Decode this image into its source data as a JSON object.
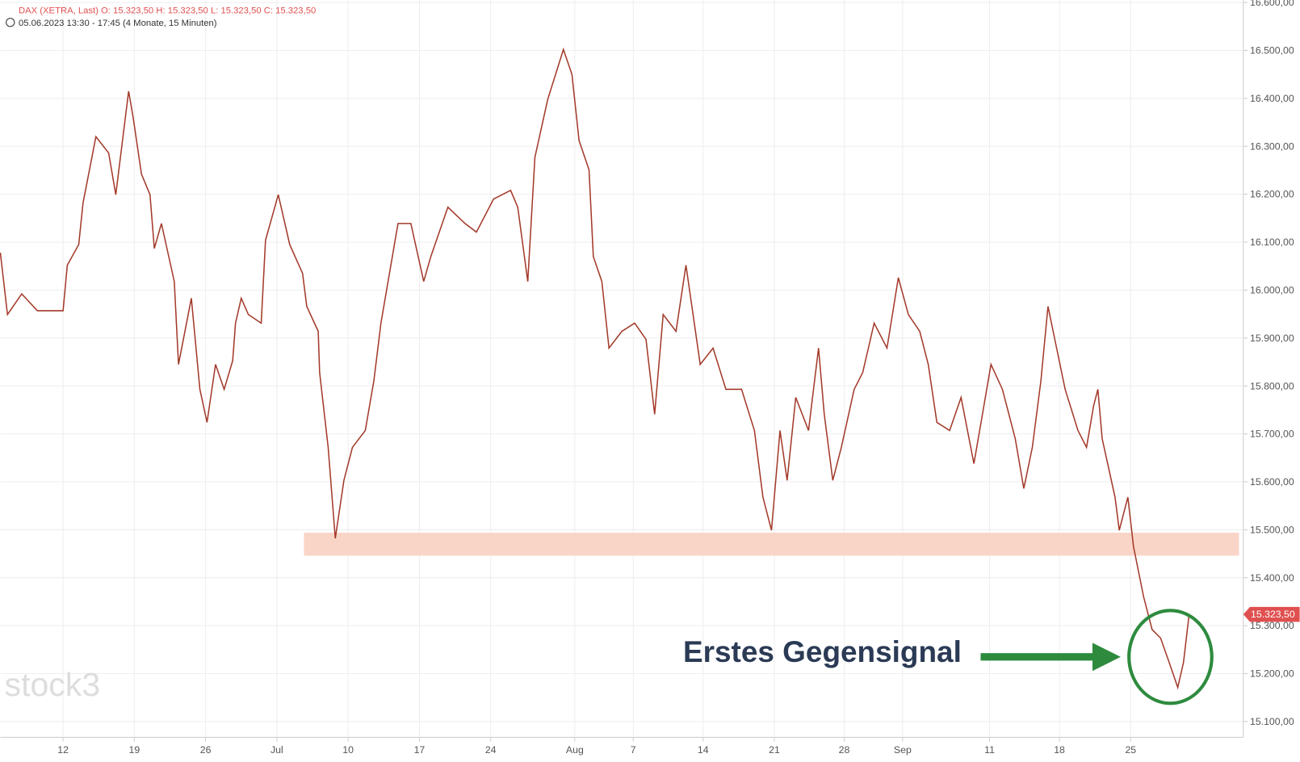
{
  "chart_data": {
    "type": "line",
    "header": "DAX (XETRA, Last)  O: 15.323,50  H: 15.323,50  L: 15.323,50  C: 15.323,50",
    "subheader": "05.06.2023 13:30 - 17:45   (4 Monate, 15 Minuten)",
    "annotation": "Erstes Gegensignal",
    "watermark": "stock3",
    "color": "#a33a2a",
    "grid": true,
    "last_price": {
      "value": 15323.5,
      "label": "15.323,50",
      "color": "#e05050"
    },
    "zone": {
      "ylim": [
        15446,
        15494
      ],
      "xlim": [
        21.3,
        86.9
      ],
      "color": "#f9d5c8"
    },
    "x": [
      0,
      0.5,
      1.5,
      2.6,
      4.4,
      4.7,
      5.5,
      5.8,
      6.7,
      7.6,
      8.1,
      9.0,
      9.3,
      9.9,
      10.5,
      10.8,
      11.3,
      12.2,
      12.5,
      13.4,
      14.0,
      14.5,
      15.1,
      15.7,
      16.3,
      16.5,
      16.9,
      17.4,
      18.3,
      18.6,
      19.5,
      20.3,
      21.2,
      21.5,
      22.3,
      22.4,
      23.0,
      23.5,
      24.1,
      24.7,
      25.6,
      26.2,
      26.7,
      27.3,
      27.9,
      28.8,
      29.7,
      30.2,
      31.4,
      32.6,
      33.4,
      34.6,
      35.8,
      36.3,
      37.0,
      37.5,
      38.4,
      39.5,
      40.1,
      40.6,
      41.3,
      41.6,
      42.2,
      42.7,
      43.6,
      44.5,
      45.3,
      45.9,
      46.5,
      47.4,
      48.1,
      49.1,
      50.0,
      50.9,
      52.0,
      52.9,
      53.5,
      54.1,
      54.7,
      55.2,
      55.8,
      56.7,
      57.4,
      57.8,
      58.4,
      59.0,
      59.9,
      60.5,
      61.3,
      62.2,
      63.0,
      63.7,
      64.5,
      65.1,
      65.7,
      66.6,
      67.4,
      68.3,
      68.9,
      69.5,
      70.3,
      71.2,
      71.8,
      72.4,
      73.0,
      73.5,
      74.1,
      74.7,
      75.6,
      76.2,
      76.7,
      77.0,
      77.3,
      78.2,
      78.5,
      79.1,
      79.5,
      80.2,
      80.8,
      81.4,
      82.0,
      82.6,
      83.0,
      83.4
    ],
    "values": [
      16078,
      15949,
      15992,
      15957,
      15957,
      16052,
      16095,
      16182,
      16320,
      16286,
      16199,
      16415,
      16363,
      16242,
      16199,
      16087,
      16139,
      16018,
      15845,
      15983,
      15793,
      15724,
      15845,
      15793,
      15853,
      15931,
      15983,
      15949,
      15931,
      16104,
      16199,
      16095,
      16035,
      15966,
      15914,
      15828,
      15672,
      15482,
      15603,
      15672,
      15707,
      15810,
      15931,
      16035,
      16139,
      16139,
      16018,
      16070,
      16173,
      16139,
      16121,
      16190,
      16208,
      16173,
      16018,
      16277,
      16398,
      16502,
      16450,
      16312,
      16251,
      16070,
      16018,
      15879,
      15914,
      15931,
      15897,
      15741,
      15949,
      15914,
      16052,
      15845,
      15879,
      15793,
      15793,
      15707,
      15568,
      15499,
      15707,
      15603,
      15776,
      15707,
      15879,
      15741,
      15603,
      15672,
      15793,
      15828,
      15931,
      15879,
      16026,
      15949,
      15914,
      15845,
      15724,
      15707,
      15776,
      15638,
      15741,
      15845,
      15793,
      15690,
      15586,
      15672,
      15810,
      15966,
      15879,
      15793,
      15707,
      15672,
      15759,
      15793,
      15690,
      15568,
      15499,
      15568,
      15465,
      15361,
      15292,
      15274,
      15223,
      15171,
      15223,
      15323.5
    ],
    "xlim": [
      0,
      87.2
    ],
    "xticks": [
      {
        "value": 4.4,
        "label": "12"
      },
      {
        "value": 9.4,
        "label": "19"
      },
      {
        "value": 14.4,
        "label": "26"
      },
      {
        "value": 19.4,
        "label": "Jul"
      },
      {
        "value": 24.4,
        "label": "10"
      },
      {
        "value": 29.4,
        "label": "17"
      },
      {
        "value": 34.4,
        "label": "24"
      },
      {
        "value": 40.3,
        "label": "Aug"
      },
      {
        "value": 44.4,
        "label": "7"
      },
      {
        "value": 49.3,
        "label": "14"
      },
      {
        "value": 54.3,
        "label": "21"
      },
      {
        "value": 59.2,
        "label": "28"
      },
      {
        "value": 63.3,
        "label": "Sep"
      },
      {
        "value": 69.4,
        "label": "11"
      },
      {
        "value": 74.3,
        "label": "18"
      },
      {
        "value": 79.3,
        "label": "25"
      }
    ],
    "ylim": [
      15100,
      16600
    ],
    "yticks": [
      {
        "value": 15100,
        "label": "15.100,00"
      },
      {
        "value": 15200,
        "label": "15.200,00"
      },
      {
        "value": 15300,
        "label": "15.300,00"
      },
      {
        "value": 15400,
        "label": "15.400,00"
      },
      {
        "value": 15500,
        "label": "15.500,00"
      },
      {
        "value": 15600,
        "label": "15.600,00"
      },
      {
        "value": 15700,
        "label": "15.700,00"
      },
      {
        "value": 15800,
        "label": "15.800,00"
      },
      {
        "value": 15900,
        "label": "15.900,00"
      },
      {
        "value": 16000,
        "label": "16.000,00"
      },
      {
        "value": 16100,
        "label": "16.100,00"
      },
      {
        "value": 16200,
        "label": "16.200,00"
      },
      {
        "value": 16300,
        "label": "16.300,00"
      },
      {
        "value": 16400,
        "label": "16.400,00"
      },
      {
        "value": 16500,
        "label": "16.500,00"
      },
      {
        "value": 16600,
        "label": "16.600,00"
      }
    ]
  }
}
